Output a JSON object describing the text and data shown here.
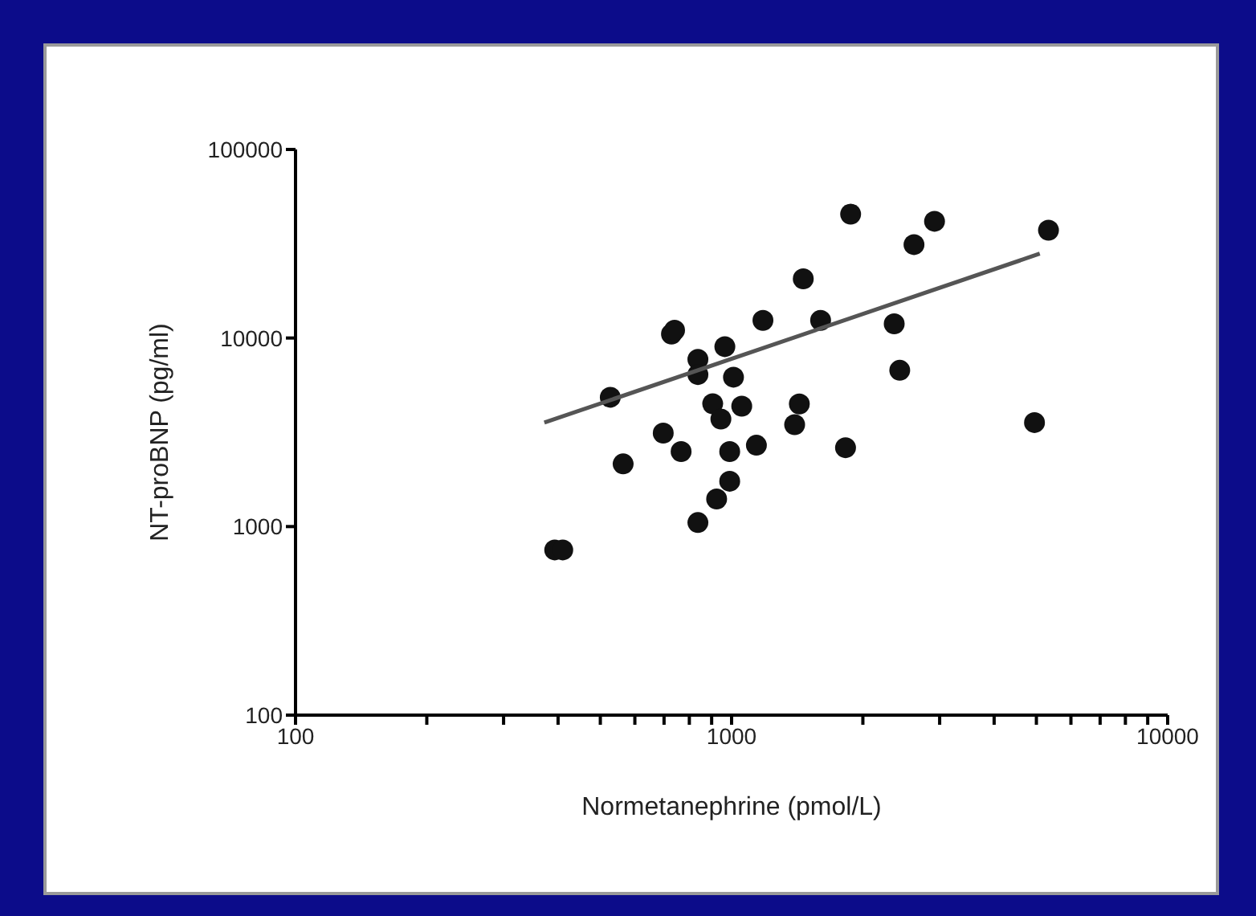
{
  "chart_data": {
    "type": "scatter",
    "xlabel": "Normetanephrine (pmol/L)",
    "ylabel": "NT-proBNP (pg/ml)",
    "log": "xy",
    "marker": "circle",
    "xlim": [
      100,
      10000
    ],
    "ylim": [
      100,
      100000
    ],
    "xticks": [
      100,
      {
        "value": 200,
        "label": null
      },
      {
        "value": 300,
        "label": null
      },
      {
        "value": 400,
        "label": null
      },
      {
        "value": 500,
        "label": null
      },
      {
        "value": 600,
        "label": null
      },
      {
        "value": 700,
        "label": null
      },
      {
        "value": 800,
        "label": null
      },
      {
        "value": 900,
        "label": null
      },
      1000,
      {
        "value": 2000,
        "label": null
      },
      {
        "value": 3000,
        "label": null
      },
      {
        "value": 4000,
        "label": null
      },
      {
        "value": 5000,
        "label": null
      },
      {
        "value": 6000,
        "label": null
      },
      {
        "value": 7000,
        "label": null
      },
      {
        "value": 8000,
        "label": null
      },
      {
        "value": 9000,
        "label": null
      },
      10000
    ],
    "yticks": [
      100,
      1000,
      10000,
      100000
    ],
    "series": [
      {
        "color": "#111111",
        "x": [
          393,
          410,
          527,
          564,
          697,
          766,
          728,
          837,
          965,
          837,
          1010,
          905,
          1055,
          945,
          990,
          1140,
          990,
          924,
          837,
          1395,
          1430,
          1825,
          2430,
          2360,
          1600,
          1180,
          1460,
          1875,
          2920,
          2620,
          5330,
          4950,
          740
        ],
        "values": [
          752,
          752,
          4850,
          2150,
          3130,
          2500,
          10500,
          7700,
          9000,
          6400,
          6200,
          4480,
          4350,
          3720,
          2500,
          2700,
          1740,
          1400,
          1050,
          3470,
          4470,
          2620,
          6740,
          11900,
          12400,
          12400,
          20600,
          45400,
          41600,
          31300,
          37300,
          3560,
          11000
        ]
      },
      {
        "type": "line",
        "color": "#555555",
        "marker": "none",
        "x": [
          372,
          5090
        ],
        "values": [
          3560,
          28000
        ]
      }
    ]
  }
}
